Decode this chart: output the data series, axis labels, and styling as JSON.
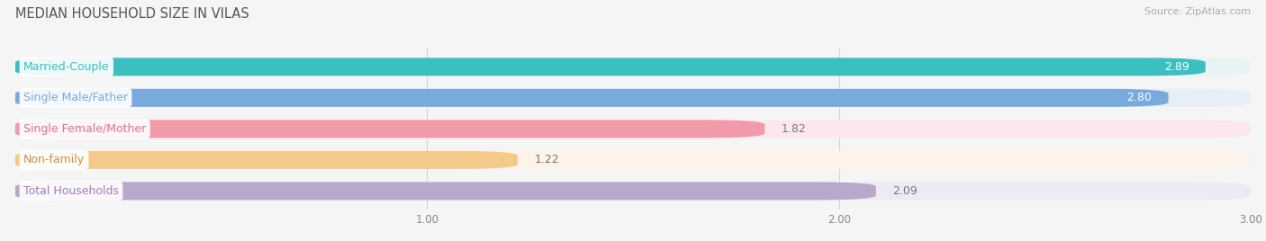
{
  "title": "MEDIAN HOUSEHOLD SIZE IN VILAS",
  "source": "Source: ZipAtlas.com",
  "categories": [
    "Married-Couple",
    "Single Male/Father",
    "Single Female/Mother",
    "Non-family",
    "Total Households"
  ],
  "values": [
    2.89,
    2.8,
    1.82,
    1.22,
    2.09
  ],
  "bar_colors": [
    "#3cbfc0",
    "#79aade",
    "#f299aa",
    "#f5c98a",
    "#b8a8cc"
  ],
  "bar_bg_colors": [
    "#e8f4f4",
    "#e8eef8",
    "#fce8ec",
    "#fdf3e8",
    "#eeeaf4"
  ],
  "label_text_colors": [
    "#3cbfc0",
    "#79aade",
    "#e07090",
    "#c8934a",
    "#9980bb"
  ],
  "xmin": 0.0,
  "xmax": 3.0,
  "xticks": [
    1.0,
    2.0,
    3.0
  ],
  "bar_height": 0.58,
  "label_fontsize": 9.0,
  "value_fontsize": 9.0,
  "title_fontsize": 10.5,
  "source_fontsize": 8.0,
  "background_color": "#f5f5f5",
  "value_inside": [
    true,
    true,
    false,
    false,
    false
  ]
}
